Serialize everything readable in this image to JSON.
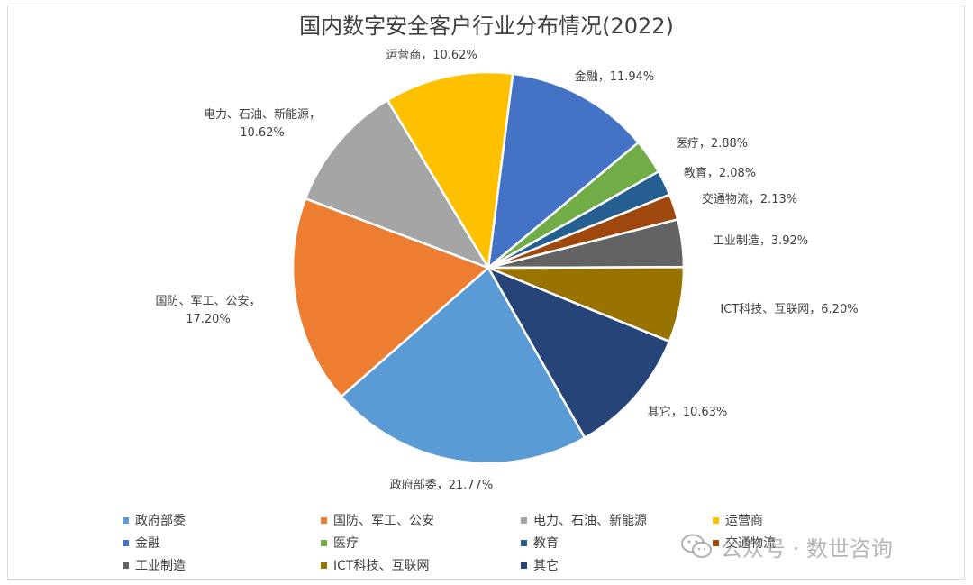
{
  "chart_data": {
    "type": "pie",
    "title": "国内数字安全客户行业分布情况(2022)",
    "slices": [
      {
        "name": "金融",
        "value": 11.94,
        "label": "金融，11.94%",
        "color": "#4472C4"
      },
      {
        "name": "医疗",
        "value": 2.88,
        "label": "医疗，2.88%",
        "color": "#70AD47"
      },
      {
        "name": "教育",
        "value": 2.08,
        "label": "教育，2.08%",
        "color": "#255E91"
      },
      {
        "name": "交通物流",
        "value": 2.13,
        "label": "交通物流，2.13%",
        "color": "#9E480E"
      },
      {
        "name": "工业制造",
        "value": 3.92,
        "label": "工业制造，3.92%",
        "color": "#636363"
      },
      {
        "name": "ICT科技、互联网",
        "value": 6.2,
        "label": "ICT科技、互联网，6.20%",
        "color": "#997300"
      },
      {
        "name": "其它",
        "value": 10.63,
        "label": "其它，10.63%",
        "color": "#264478"
      },
      {
        "name": "政府部委",
        "value": 21.77,
        "label": "政府部委，21.77%",
        "color": "#5B9BD5"
      },
      {
        "name": "国防、军工、公安",
        "value": 17.2,
        "label_lines": [
          "国防、军工、公安，",
          "17.20%"
        ],
        "color": "#ED7D31"
      },
      {
        "name": "电力、石油、新能源",
        "value": 10.62,
        "label_lines": [
          "电力、石油、新能源，",
          "10.62%"
        ],
        "color": "#A5A5A5"
      },
      {
        "name": "运营商",
        "value": 10.62,
        "label": "运营商，10.62%",
        "color": "#FFC000"
      }
    ],
    "legend_position": "bottom",
    "legend": [
      {
        "name": "政府部委",
        "color": "#5B9BD5"
      },
      {
        "name": "国防、军工、公安",
        "color": "#ED7D31"
      },
      {
        "name": "电力、石油、新能源",
        "color": "#A5A5A5"
      },
      {
        "name": "运营商",
        "color": "#FFC000"
      },
      {
        "name": "金融",
        "color": "#4472C4"
      },
      {
        "name": "医疗",
        "color": "#70AD47"
      },
      {
        "name": "教育",
        "color": "#255E91"
      },
      {
        "name": "交通物流",
        "color": "#9E480E"
      },
      {
        "name": "工业制造",
        "color": "#636363"
      },
      {
        "name": "ICT科技、互联网",
        "color": "#997300"
      },
      {
        "name": "其它",
        "color": "#264478"
      }
    ]
  },
  "watermark": {
    "icon": "wechat-icon",
    "text": "公众号 · 数世咨询"
  }
}
